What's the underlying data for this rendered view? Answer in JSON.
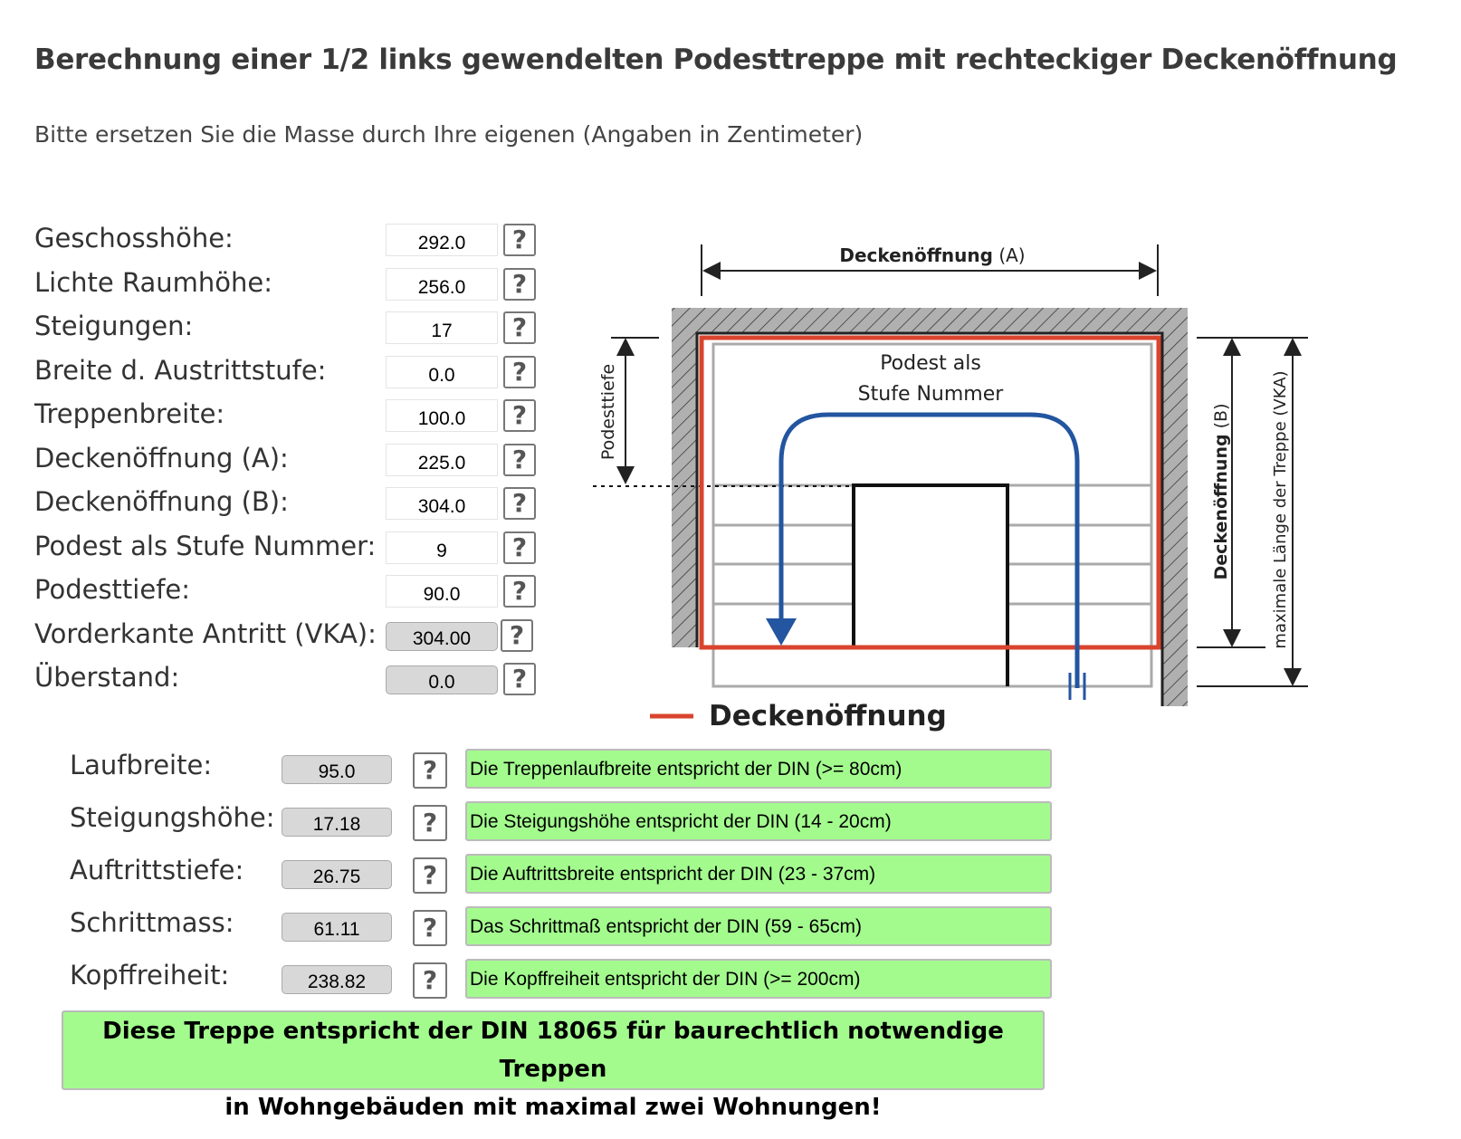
{
  "title": "Berechnung einer 1/2 links gewendelten Podesttreppe mit rechteckiger Deckenöffnung",
  "subtitle": "Bitte ersetzen Sie die Masse durch Ihre eigenen (Angaben in Zentimeter)",
  "help_label": "?",
  "inputs": [
    {
      "label": "Geschosshöhe:",
      "value": "292.0",
      "readonly": false
    },
    {
      "label": "Lichte Raumhöhe:",
      "value": "256.0",
      "readonly": false
    },
    {
      "label": "Steigungen:",
      "value": "17",
      "readonly": false
    },
    {
      "label": "Breite d. Austrittstufe:",
      "value": "0.0",
      "readonly": false
    },
    {
      "label": "Treppenbreite:",
      "value": "100.0",
      "readonly": false
    },
    {
      "label": "Deckenöffnung (A):",
      "value": "225.0",
      "readonly": false
    },
    {
      "label": "Deckenöffnung (B):",
      "value": "304.0",
      "readonly": false
    },
    {
      "label": "Podest als Stufe Nummer:",
      "value": "9",
      "readonly": false
    },
    {
      "label": "Podesttiefe:",
      "value": "90.0",
      "readonly": false
    },
    {
      "label": "Vorderkante Antritt (VKA):",
      "value": "304.00",
      "readonly": true
    },
    {
      "label": "Überstand:",
      "value": "0.0",
      "readonly": true
    }
  ],
  "diagram": {
    "label_a": "Deckenöffnung",
    "label_a_suffix": "(A)",
    "label_b": "Deckenöffnung",
    "label_b_suffix": "(B)",
    "podesttiefe": "Podesttiefe",
    "vka": "maximale Länge der Treppe (VKA)",
    "podest_line1": "Podest als",
    "podest_line2": "Stufe Nummer",
    "legend": "Deckenöffnung",
    "colors": {
      "opening": "#d9442e",
      "walk_line": "#2355a0",
      "wall_hatch": "#b0b0b0"
    }
  },
  "results": [
    {
      "label": "Laufbreite:",
      "value": "95.0",
      "message": "Die Treppenlaufbreite entspricht der DIN (>= 80cm)"
    },
    {
      "label": "Steigungshöhe:",
      "value": "17.18",
      "message": "Die Steigungshöhe entspricht der DIN (14 - 20cm)"
    },
    {
      "label": "Auftrittstiefe:",
      "value": "26.75",
      "message": "Die Auftrittsbreite entspricht der DIN (23 - 37cm)"
    },
    {
      "label": "Schrittmass:",
      "value": "61.11",
      "message": "Das Schrittmaß entspricht der DIN (59 - 65cm)"
    },
    {
      "label": "Kopffreiheit:",
      "value": "238.82",
      "message": "Die Kopffreiheit entspricht der DIN (>= 200cm)"
    }
  ],
  "final_line1": "Diese Treppe entspricht der DIN 18065 für baurechtlich notwendige Treppen",
  "final_line2": "in Wohngebäuden mit maximal zwei Wohnungen!",
  "ok_color": "#a3fb8e"
}
